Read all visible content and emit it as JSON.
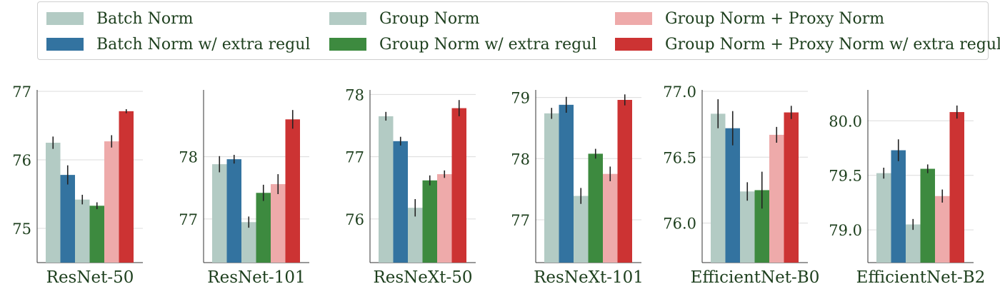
{
  "legend": [
    {
      "label": "Batch Norm",
      "color": "#b3cbc4"
    },
    {
      "label": "Batch Norm w/ extra regul",
      "color": "#3373a0"
    },
    {
      "label": "Group Norm",
      "color": "#b3cbc4"
    },
    {
      "label": "Group Norm w/ extra regul",
      "color": "#3d8a3f"
    },
    {
      "label": "Group Norm + Proxy Norm",
      "color": "#eeaaaa"
    },
    {
      "label": "Group Norm + Proxy Norm w/ extra regul",
      "color": "#cc3333"
    }
  ],
  "chart_data": [
    {
      "type": "bar",
      "xlabel": "ResNet-50",
      "ylim": [
        74.5,
        77.0
      ],
      "yticks": [
        "75",
        "76",
        "77"
      ],
      "tick_values": [
        75,
        76,
        77
      ],
      "grid": true,
      "series": [
        {
          "name": "Batch Norm",
          "value": 76.25,
          "error": 0.09
        },
        {
          "name": "Batch Norm w/ extra regul",
          "value": 75.78,
          "error": 0.14
        },
        {
          "name": "Group Norm",
          "value": 75.42,
          "error": 0.07
        },
        {
          "name": "Group Norm w/ extra regul",
          "value": 75.33,
          "error": 0.05
        },
        {
          "name": "Group Norm + Proxy Norm",
          "value": 76.27,
          "error": 0.09
        },
        {
          "name": "Group Norm + Proxy Norm w/ extra regul",
          "value": 76.71,
          "error": 0.03
        }
      ]
    },
    {
      "type": "bar",
      "xlabel": "ResNet-101",
      "ylim": [
        76.3,
        79.05
      ],
      "yticks": [
        "77",
        "78"
      ],
      "tick_values": [
        77,
        78
      ],
      "grid": true,
      "series": [
        {
          "name": "Batch Norm",
          "value": 77.88,
          "error": 0.13
        },
        {
          "name": "Batch Norm w/ extra regul",
          "value": 77.96,
          "error": 0.07
        },
        {
          "name": "Group Norm",
          "value": 76.95,
          "error": 0.09
        },
        {
          "name": "Group Norm w/ extra regul",
          "value": 77.42,
          "error": 0.13
        },
        {
          "name": "Group Norm + Proxy Norm",
          "value": 77.56,
          "error": 0.16
        },
        {
          "name": "Group Norm + Proxy Norm w/ extra regul",
          "value": 78.6,
          "error": 0.15
        }
      ]
    },
    {
      "type": "bar",
      "xlabel": "ResNeXt-50",
      "ylim": [
        75.3,
        78.05
      ],
      "yticks": [
        "76",
        "77",
        "78"
      ],
      "tick_values": [
        76,
        77,
        78
      ],
      "grid": true,
      "series": [
        {
          "name": "Batch Norm",
          "value": 77.65,
          "error": 0.07
        },
        {
          "name": "Batch Norm w/ extra regul",
          "value": 77.25,
          "error": 0.07
        },
        {
          "name": "Group Norm",
          "value": 76.18,
          "error": 0.14
        },
        {
          "name": "Group Norm w/ extra regul",
          "value": 76.62,
          "error": 0.08
        },
        {
          "name": "Group Norm + Proxy Norm",
          "value": 76.72,
          "error": 0.06
        },
        {
          "name": "Group Norm + Proxy Norm w/ extra regul",
          "value": 77.78,
          "error": 0.13
        }
      ]
    },
    {
      "type": "bar",
      "xlabel": "ResNeXt-101",
      "ylim": [
        76.3,
        79.1
      ],
      "yticks": [
        "77",
        "78",
        "79"
      ],
      "tick_values": [
        77,
        78,
        79
      ],
      "grid": true,
      "series": [
        {
          "name": "Batch Norm",
          "value": 78.74,
          "error": 0.09
        },
        {
          "name": "Batch Norm w/ extra regul",
          "value": 78.88,
          "error": 0.13
        },
        {
          "name": "Group Norm",
          "value": 77.39,
          "error": 0.13
        },
        {
          "name": "Group Norm w/ extra regul",
          "value": 78.08,
          "error": 0.08
        },
        {
          "name": "Group Norm + Proxy Norm",
          "value": 77.75,
          "error": 0.12
        },
        {
          "name": "Group Norm + Proxy Norm w/ extra regul",
          "value": 78.96,
          "error": 0.09
        }
      ]
    },
    {
      "type": "bar",
      "xlabel": "EfficientNet-B0",
      "ylim": [
        75.7,
        77.0
      ],
      "yticks": [
        "76.0",
        "76.5",
        "77.0"
      ],
      "tick_values": [
        76.0,
        76.5,
        77.0
      ],
      "grid": true,
      "series": [
        {
          "name": "Batch Norm",
          "value": 76.83,
          "error": 0.11
        },
        {
          "name": "Batch Norm w/ extra regul",
          "value": 76.72,
          "error": 0.13
        },
        {
          "name": "Group Norm",
          "value": 76.24,
          "error": 0.07
        },
        {
          "name": "Group Norm w/ extra regul",
          "value": 76.25,
          "error": 0.14
        },
        {
          "name": "Group Norm + Proxy Norm",
          "value": 76.67,
          "error": 0.06
        },
        {
          "name": "Group Norm + Proxy Norm w/ extra regul",
          "value": 76.84,
          "error": 0.05
        }
      ]
    },
    {
      "type": "bar",
      "xlabel": "EfficientNet-B2",
      "ylim": [
        78.7,
        80.27
      ],
      "yticks": [
        "79.0",
        "79.5",
        "80.0"
      ],
      "tick_values": [
        79.0,
        79.5,
        80.0
      ],
      "grid": true,
      "series": [
        {
          "name": "Batch Norm",
          "value": 79.52,
          "error": 0.05
        },
        {
          "name": "Batch Norm w/ extra regul",
          "value": 79.73,
          "error": 0.1
        },
        {
          "name": "Group Norm",
          "value": 79.05,
          "error": 0.05
        },
        {
          "name": "Group Norm w/ extra regul",
          "value": 79.56,
          "error": 0.04
        },
        {
          "name": "Group Norm + Proxy Norm",
          "value": 79.31,
          "error": 0.06
        },
        {
          "name": "Group Norm + Proxy Norm w/ extra regul",
          "value": 80.08,
          "error": 0.06
        }
      ]
    }
  ]
}
